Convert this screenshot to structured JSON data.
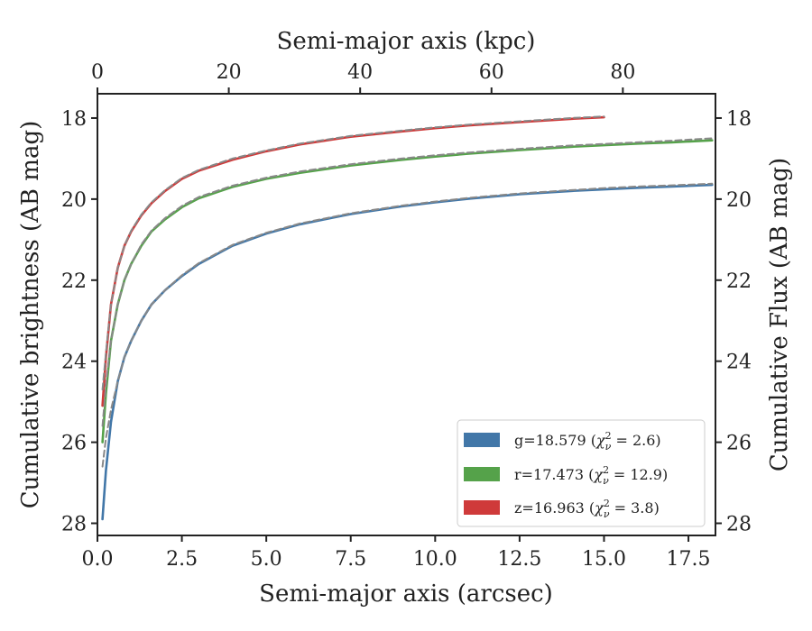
{
  "chart_data": {
    "type": "line",
    "xlabel": "Semi-major axis (arcsec)",
    "ylabel": "Cumulative brightness (AB mag)",
    "ylabel_right": "Cumulative Flux (AB mag)",
    "xlabel_top": "Semi-major axis (kpc)",
    "xlim": [
      0,
      18.3
    ],
    "ylim": [
      28.3,
      17.4
    ],
    "y_inverted": true,
    "xticks": [
      "0.0",
      "2.5",
      "5.0",
      "7.5",
      "10.0",
      "12.5",
      "15.0",
      "17.5"
    ],
    "yticks": [
      "18",
      "20",
      "22",
      "24",
      "26",
      "28"
    ],
    "top_xlim_kpc": [
      0,
      94.1
    ],
    "top_xticks": [
      "0",
      "20",
      "40",
      "60",
      "80"
    ],
    "legend_position": "lower-right",
    "grid": false,
    "series": [
      {
        "name": "g",
        "legend": "g=18.579 (χ²ᵥ = 2.6)",
        "color": "#4277a8",
        "x": [
          0.15,
          0.25,
          0.4,
          0.6,
          0.8,
          1.0,
          1.3,
          1.6,
          2.0,
          2.5,
          3.0,
          4.0,
          5.0,
          6.0,
          7.5,
          9.0,
          10.0,
          11.0,
          12.5,
          14.0,
          15.0,
          16.0,
          17.0,
          18.2
        ],
        "values": [
          27.9,
          26.7,
          25.5,
          24.5,
          23.9,
          23.5,
          23.0,
          22.6,
          22.25,
          21.9,
          21.6,
          21.15,
          20.85,
          20.62,
          20.37,
          20.18,
          20.08,
          19.99,
          19.88,
          19.8,
          19.76,
          19.72,
          19.69,
          19.65
        ]
      },
      {
        "name": "g model",
        "color": "#888888",
        "dashed": true,
        "x": [
          0.15,
          0.25,
          0.4,
          0.6,
          0.8,
          1.0,
          1.3,
          1.6,
          2.0,
          2.5,
          3.0,
          4.0,
          5.0,
          6.0,
          7.5,
          9.0,
          10.0,
          11.0,
          12.5,
          14.0,
          15.0,
          16.0,
          17.0,
          18.2
        ],
        "values": [
          26.6,
          25.9,
          25.2,
          24.5,
          23.9,
          23.5,
          23.0,
          22.6,
          22.25,
          21.88,
          21.58,
          21.13,
          20.83,
          20.6,
          20.35,
          20.16,
          20.06,
          19.97,
          19.86,
          19.78,
          19.73,
          19.69,
          19.66,
          19.62
        ]
      },
      {
        "name": "r",
        "legend": "r=17.473 (χ²ᵥ = 12.9)",
        "color": "#55a24a",
        "x": [
          0.15,
          0.25,
          0.4,
          0.6,
          0.8,
          1.0,
          1.3,
          1.6,
          2.0,
          2.5,
          3.0,
          4.0,
          5.0,
          6.0,
          7.5,
          9.0,
          10.0,
          11.0,
          12.5,
          14.0,
          15.0,
          16.0,
          17.0,
          18.2
        ],
        "values": [
          26.0,
          24.8,
          23.5,
          22.6,
          22.0,
          21.6,
          21.15,
          20.8,
          20.5,
          20.2,
          19.98,
          19.7,
          19.5,
          19.35,
          19.17,
          19.03,
          18.95,
          18.88,
          18.79,
          18.71,
          18.67,
          18.63,
          18.6,
          18.55
        ]
      },
      {
        "name": "r model",
        "color": "#888888",
        "dashed": true,
        "x": [
          0.15,
          0.25,
          0.4,
          0.6,
          0.8,
          1.0,
          1.3,
          1.6,
          2.0,
          2.5,
          3.0,
          4.0,
          5.0,
          6.0,
          7.5,
          9.0,
          10.0,
          11.0,
          12.5,
          14.0,
          15.0,
          16.0,
          17.0,
          18.2
        ],
        "values": [
          25.6,
          24.6,
          23.5,
          22.6,
          22.0,
          21.6,
          21.12,
          20.78,
          20.47,
          20.17,
          19.95,
          19.67,
          19.47,
          19.32,
          19.14,
          19.0,
          18.92,
          18.85,
          18.76,
          18.68,
          18.64,
          18.6,
          18.56,
          18.5
        ]
      },
      {
        "name": "z",
        "legend": "z=16.963 (χ²ᵥ = 3.8)",
        "color": "#cf3a3a",
        "x": [
          0.15,
          0.25,
          0.4,
          0.6,
          0.8,
          1.0,
          1.3,
          1.6,
          2.0,
          2.5,
          3.0,
          4.0,
          5.0,
          6.0,
          7.5,
          9.0,
          10.0,
          11.0,
          12.5,
          14.0,
          15.0
        ],
        "values": [
          25.1,
          23.9,
          22.6,
          21.7,
          21.15,
          20.8,
          20.4,
          20.1,
          19.8,
          19.5,
          19.3,
          19.03,
          18.82,
          18.65,
          18.46,
          18.33,
          18.25,
          18.18,
          18.1,
          18.02,
          17.98
        ]
      },
      {
        "name": "z model",
        "color": "#888888",
        "dashed": true,
        "x": [
          0.15,
          0.25,
          0.4,
          0.6,
          0.8,
          1.0,
          1.3,
          1.6,
          2.0,
          2.5,
          3.0,
          4.0,
          5.0,
          6.0,
          7.5,
          9.0,
          10.0,
          11.0,
          12.5,
          14.0,
          15.0
        ],
        "values": [
          24.7,
          23.8,
          22.6,
          21.7,
          21.15,
          20.78,
          20.38,
          20.08,
          19.78,
          19.48,
          19.28,
          19.0,
          18.8,
          18.63,
          18.44,
          18.31,
          18.23,
          18.16,
          18.08,
          18.0,
          17.96
        ]
      }
    ]
  }
}
